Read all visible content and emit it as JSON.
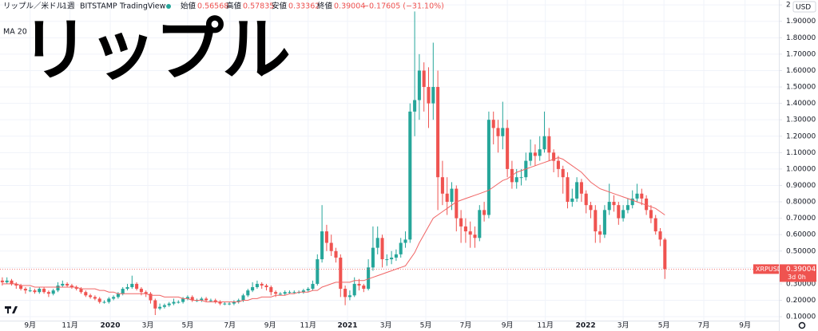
{
  "chart_data": {
    "type": "candlestick",
    "overlay_text": "リップル",
    "title": "リップル／米ドル",
    "interval": "1週",
    "exchange": "BITSTAMP",
    "source": "TradingView",
    "ohlc": {
      "open_label": "始値",
      "open": 0.56568,
      "high_label": "高値",
      "high": 0.57835,
      "low_label": "安値",
      "low": 0.33362,
      "close_label": "終値",
      "close": 0.39004,
      "change": "−0.17605 (−31.10%)"
    },
    "ma_label": "MA 20",
    "currency": "USD",
    "last_price": {
      "symbol": "XRPUSD",
      "value": 0.39004,
      "label": "0.39004",
      "countdown": "3d 0h"
    },
    "up_color": "#26a69a",
    "down_color": "#ef5350",
    "ma_color": "#f06464",
    "grid": true,
    "xlim": [
      -0.5,
      167.6
    ],
    "ylim": [
      0.076,
      2.03
    ],
    "xticks": [
      {
        "value": 6.0,
        "label": "9月"
      },
      {
        "value": 14.6,
        "label": "11月"
      },
      {
        "value": 23.3,
        "label": "2020"
      },
      {
        "value": 31.4,
        "label": "3月"
      },
      {
        "value": 40.0,
        "label": "5月"
      },
      {
        "value": 49.1,
        "label": "7月"
      },
      {
        "value": 57.8,
        "label": "9月"
      },
      {
        "value": 66.0,
        "label": "11月"
      },
      {
        "value": 74.5,
        "label": "2021"
      },
      {
        "value": 82.8,
        "label": "3月"
      },
      {
        "value": 91.4,
        "label": "5月"
      },
      {
        "value": 100.0,
        "label": "7月"
      },
      {
        "value": 109.0,
        "label": "9月"
      },
      {
        "value": 117.2,
        "label": "11月"
      },
      {
        "value": 125.9,
        "label": "2022"
      },
      {
        "value": 134.0,
        "label": "3月"
      },
      {
        "value": 142.8,
        "label": "5月"
      },
      {
        "value": 151.4,
        "label": "7月"
      },
      {
        "value": 160.3,
        "label": "9月"
      }
    ],
    "yticks": [
      {
        "value": 0.1,
        "label": "0.10000"
      },
      {
        "value": 0.2,
        "label": "0.20000"
      },
      {
        "value": 0.3,
        "label": "0.30000"
      },
      {
        "value": 0.4,
        "label": "0.40000"
      },
      {
        "value": 0.5,
        "label": "0.50000"
      },
      {
        "value": 0.6,
        "label": "0.60000"
      },
      {
        "value": 0.7,
        "label": "0.70000"
      },
      {
        "value": 0.8,
        "label": "0.80000"
      },
      {
        "value": 0.9,
        "label": "0.90000"
      },
      {
        "value": 1.0,
        "label": "1.00000"
      },
      {
        "value": 1.1,
        "label": "1.10000"
      },
      {
        "value": 1.2,
        "label": "1.20000"
      },
      {
        "value": 1.3,
        "label": "1.30000"
      },
      {
        "value": 1.4,
        "label": "1.40000"
      },
      {
        "value": 1.5,
        "label": "1.50000"
      },
      {
        "value": 1.6,
        "label": "1.60000"
      },
      {
        "value": 1.7,
        "label": "1.70000"
      },
      {
        "value": 1.8,
        "label": "1.80000"
      },
      {
        "value": 1.9,
        "label": "1.90000"
      },
      2
    ],
    "open": [
      0.32,
      0.31,
      0.32,
      0.3,
      0.29,
      0.27,
      0.26,
      0.26,
      0.25,
      0.27,
      0.25,
      0.24,
      0.26,
      0.29,
      0.3,
      0.29,
      0.28,
      0.27,
      0.25,
      0.23,
      0.22,
      0.21,
      0.19,
      0.19,
      0.21,
      0.22,
      0.24,
      0.27,
      0.28,
      0.3,
      0.27,
      0.25,
      0.24,
      0.2,
      0.15,
      0.16,
      0.17,
      0.18,
      0.19,
      0.19,
      0.21,
      0.22,
      0.2,
      0.2,
      0.21,
      0.2,
      0.2,
      0.19,
      0.18,
      0.18,
      0.18,
      0.19,
      0.2,
      0.23,
      0.26,
      0.28,
      0.3,
      0.29,
      0.28,
      0.25,
      0.24,
      0.24,
      0.25,
      0.25,
      0.25,
      0.25,
      0.26,
      0.27,
      0.3,
      0.45,
      0.62,
      0.55,
      0.5,
      0.46,
      0.27,
      0.22,
      0.23,
      0.3,
      0.29,
      0.27,
      0.4,
      0.52,
      0.58,
      0.45,
      0.45,
      0.46,
      0.48,
      0.55,
      0.57,
      1.35,
      1.42,
      1.6,
      1.5,
      1.4,
      1.5,
      0.95,
      0.85,
      0.8,
      0.88,
      0.7,
      0.65,
      0.62,
      0.6,
      0.58,
      0.75,
      0.72,
      1.3,
      1.25,
      1.2,
      1.25,
      1.0,
      0.92,
      0.95,
      0.95,
      1.05,
      1.1,
      1.08,
      1.12,
      1.2,
      1.1,
      1.05,
      1.0,
      0.95,
      0.8,
      0.82,
      0.92,
      0.85,
      0.78,
      0.75,
      0.62,
      0.6,
      0.75,
      0.8,
      0.78,
      0.7,
      0.75,
      0.78,
      0.82,
      0.85,
      0.82,
      0.75,
      0.7,
      0.62,
      0.57
    ],
    "high": [
      0.34,
      0.34,
      0.33,
      0.31,
      0.3,
      0.28,
      0.28,
      0.27,
      0.28,
      0.28,
      0.26,
      0.27,
      0.31,
      0.32,
      0.31,
      0.3,
      0.29,
      0.28,
      0.26,
      0.24,
      0.23,
      0.22,
      0.2,
      0.22,
      0.23,
      0.25,
      0.28,
      0.3,
      0.35,
      0.31,
      0.28,
      0.26,
      0.25,
      0.21,
      0.18,
      0.18,
      0.19,
      0.21,
      0.2,
      0.22,
      0.23,
      0.23,
      0.21,
      0.22,
      0.22,
      0.21,
      0.21,
      0.2,
      0.19,
      0.19,
      0.2,
      0.21,
      0.24,
      0.27,
      0.31,
      0.32,
      0.31,
      0.3,
      0.29,
      0.26,
      0.25,
      0.26,
      0.26,
      0.26,
      0.26,
      0.27,
      0.28,
      0.32,
      0.48,
      0.78,
      0.66,
      0.6,
      0.52,
      0.48,
      0.29,
      0.26,
      0.34,
      0.33,
      0.3,
      0.45,
      0.65,
      0.65,
      0.6,
      0.48,
      0.5,
      0.51,
      0.58,
      0.62,
      1.4,
      1.96,
      1.7,
      1.65,
      1.62,
      1.77,
      1.6,
      1.05,
      0.95,
      0.92,
      0.9,
      0.75,
      0.7,
      0.68,
      0.65,
      0.78,
      0.8,
      1.35,
      1.35,
      1.3,
      1.41,
      1.3,
      1.05,
      1.0,
      1.0,
      1.1,
      1.18,
      1.15,
      1.2,
      1.35,
      1.25,
      1.12,
      1.08,
      1.02,
      0.98,
      0.88,
      0.95,
      0.94,
      0.87,
      0.8,
      0.78,
      0.66,
      0.78,
      0.91,
      0.84,
      0.8,
      0.78,
      0.82,
      0.87,
      0.91,
      0.88,
      0.84,
      0.78,
      0.72,
      0.64,
      0.58
    ],
    "low": [
      0.29,
      0.3,
      0.29,
      0.27,
      0.26,
      0.24,
      0.25,
      0.24,
      0.24,
      0.24,
      0.22,
      0.23,
      0.25,
      0.28,
      0.28,
      0.27,
      0.26,
      0.24,
      0.22,
      0.21,
      0.2,
      0.18,
      0.18,
      0.18,
      0.2,
      0.21,
      0.23,
      0.26,
      0.27,
      0.26,
      0.23,
      0.22,
      0.18,
      0.11,
      0.14,
      0.15,
      0.16,
      0.17,
      0.18,
      0.18,
      0.2,
      0.19,
      0.19,
      0.19,
      0.19,
      0.19,
      0.18,
      0.17,
      0.17,
      0.17,
      0.17,
      0.18,
      0.19,
      0.22,
      0.25,
      0.27,
      0.27,
      0.26,
      0.23,
      0.22,
      0.23,
      0.23,
      0.24,
      0.24,
      0.24,
      0.24,
      0.25,
      0.26,
      0.29,
      0.43,
      0.5,
      0.47,
      0.43,
      0.22,
      0.17,
      0.2,
      0.22,
      0.26,
      0.25,
      0.26,
      0.38,
      0.48,
      0.4,
      0.41,
      0.42,
      0.44,
      0.46,
      0.52,
      0.55,
      1.2,
      1.3,
      1.35,
      1.25,
      1.3,
      0.75,
      0.78,
      0.72,
      0.75,
      0.62,
      0.55,
      0.55,
      0.52,
      0.52,
      0.56,
      0.68,
      0.7,
      1.15,
      1.1,
      1.12,
      0.95,
      0.88,
      0.88,
      0.9,
      0.93,
      1.02,
      1.02,
      1.05,
      1.1,
      1.05,
      0.98,
      0.95,
      0.85,
      0.76,
      0.77,
      0.8,
      0.8,
      0.73,
      0.7,
      0.55,
      0.55,
      0.58,
      0.72,
      0.74,
      0.66,
      0.68,
      0.73,
      0.76,
      0.8,
      0.78,
      0.72,
      0.67,
      0.6,
      0.53,
      0.33
    ],
    "close": [
      0.31,
      0.32,
      0.3,
      0.29,
      0.27,
      0.26,
      0.26,
      0.25,
      0.27,
      0.25,
      0.24,
      0.26,
      0.29,
      0.3,
      0.29,
      0.28,
      0.27,
      0.25,
      0.23,
      0.22,
      0.21,
      0.19,
      0.19,
      0.21,
      0.22,
      0.24,
      0.27,
      0.28,
      0.3,
      0.27,
      0.25,
      0.24,
      0.2,
      0.15,
      0.16,
      0.17,
      0.18,
      0.19,
      0.19,
      0.21,
      0.22,
      0.2,
      0.2,
      0.21,
      0.2,
      0.2,
      0.19,
      0.18,
      0.18,
      0.18,
      0.19,
      0.2,
      0.23,
      0.26,
      0.28,
      0.3,
      0.29,
      0.28,
      0.25,
      0.24,
      0.24,
      0.25,
      0.25,
      0.25,
      0.25,
      0.26,
      0.27,
      0.3,
      0.45,
      0.62,
      0.55,
      0.5,
      0.46,
      0.27,
      0.22,
      0.23,
      0.3,
      0.29,
      0.27,
      0.4,
      0.52,
      0.58,
      0.45,
      0.45,
      0.46,
      0.48,
      0.55,
      0.57,
      1.35,
      1.42,
      1.6,
      1.5,
      1.4,
      1.5,
      0.95,
      0.85,
      0.8,
      0.88,
      0.7,
      0.65,
      0.62,
      0.6,
      0.58,
      0.75,
      0.72,
      1.3,
      1.25,
      1.2,
      1.25,
      1.0,
      0.92,
      0.95,
      0.95,
      1.05,
      1.1,
      1.08,
      1.12,
      1.2,
      1.1,
      1.05,
      1.0,
      0.95,
      0.8,
      0.82,
      0.92,
      0.85,
      0.78,
      0.75,
      0.62,
      0.6,
      0.75,
      0.8,
      0.78,
      0.7,
      0.75,
      0.78,
      0.82,
      0.85,
      0.82,
      0.75,
      0.7,
      0.62,
      0.57,
      0.39
    ],
    "ma": [
      0.3,
      0.3,
      0.3,
      0.3,
      0.29,
      0.29,
      0.29,
      0.28,
      0.28,
      0.28,
      0.28,
      0.28,
      0.28,
      0.28,
      0.28,
      0.28,
      0.28,
      0.27,
      0.27,
      0.27,
      0.27,
      0.26,
      0.26,
      0.25,
      0.25,
      0.24,
      0.24,
      0.24,
      0.24,
      0.24,
      0.24,
      0.24,
      0.23,
      0.23,
      0.23,
      0.22,
      0.22,
      0.22,
      0.22,
      0.21,
      0.21,
      0.2,
      0.2,
      0.2,
      0.19,
      0.19,
      0.19,
      0.19,
      0.19,
      0.19,
      0.19,
      0.19,
      0.2,
      0.2,
      0.21,
      0.21,
      0.22,
      0.22,
      0.22,
      0.23,
      0.23,
      0.23,
      0.24,
      0.24,
      0.25,
      0.25,
      0.25,
      0.26,
      0.26,
      0.28,
      0.29,
      0.3,
      0.31,
      0.31,
      0.31,
      0.31,
      0.32,
      0.32,
      0.32,
      0.33,
      0.34,
      0.35,
      0.36,
      0.37,
      0.38,
      0.39,
      0.4,
      0.41,
      0.45,
      0.49,
      0.55,
      0.6,
      0.65,
      0.7,
      0.72,
      0.74,
      0.76,
      0.78,
      0.8,
      0.81,
      0.82,
      0.83,
      0.84,
      0.85,
      0.86,
      0.87,
      0.89,
      0.91,
      0.93,
      0.94,
      0.96,
      0.98,
      0.99,
      1.0,
      1.01,
      1.02,
      1.03,
      1.04,
      1.05,
      1.06,
      1.07,
      1.06,
      1.04,
      1.02,
      1.0,
      0.98,
      0.95,
      0.92,
      0.9,
      0.88,
      0.87,
      0.86,
      0.85,
      0.84,
      0.83,
      0.82,
      0.81,
      0.8,
      0.79,
      0.78,
      0.77,
      0.76,
      0.74,
      0.72
    ]
  }
}
